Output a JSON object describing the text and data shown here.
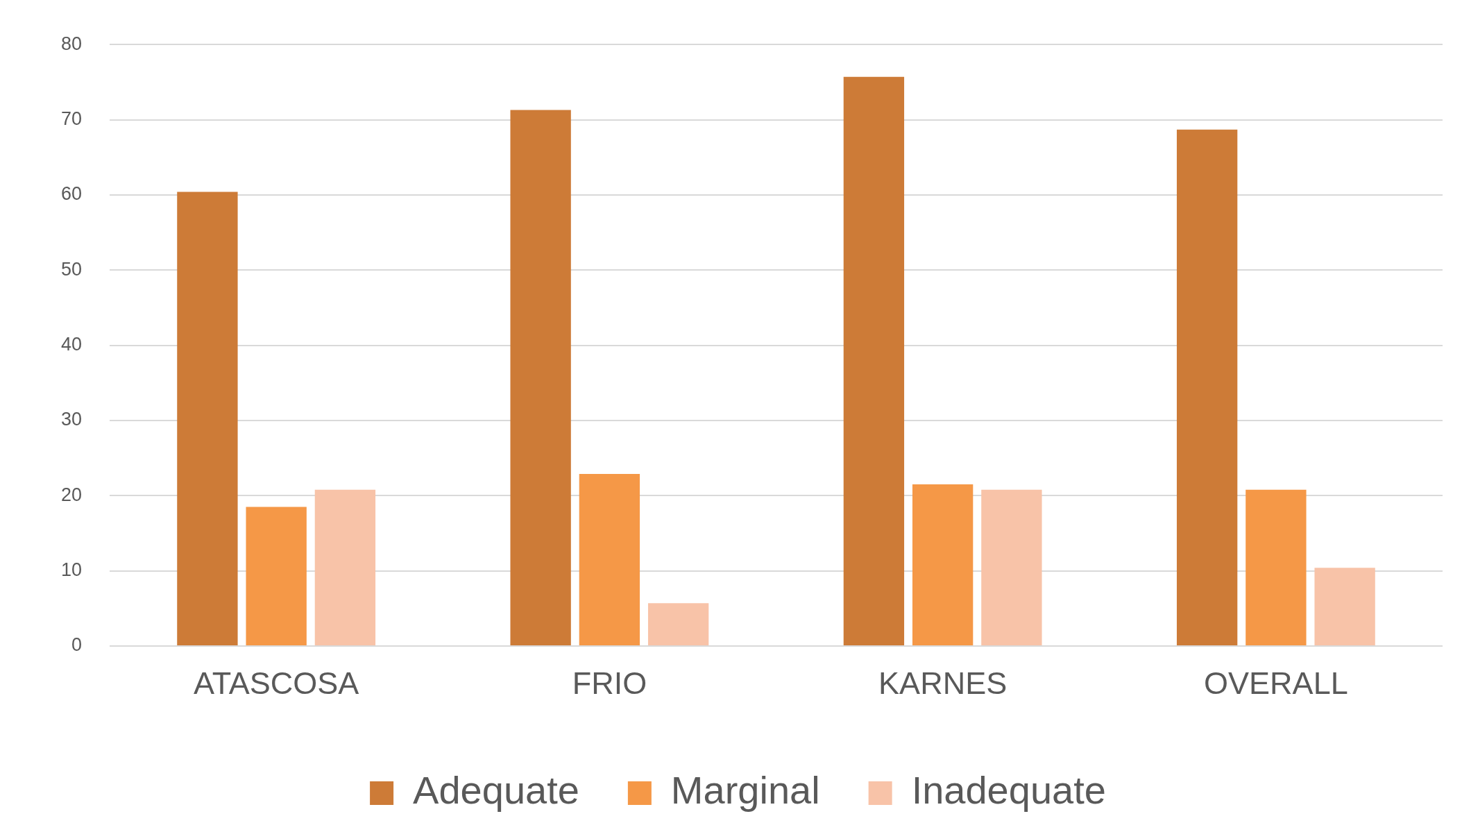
{
  "chart_data": {
    "type": "bar",
    "categories": [
      "ATASCOSA",
      "FRIO",
      "KARNES",
      "OVERALL"
    ],
    "series": [
      {
        "name": "Adequate",
        "color": "#cd7b37",
        "values": [
          60.4,
          71.3,
          75.7,
          68.7
        ]
      },
      {
        "name": "Marginal",
        "color": "#f59847",
        "values": [
          18.5,
          22.9,
          21.5,
          20.8
        ]
      },
      {
        "name": "Inadequate",
        "color": "#f8c3a8",
        "values": [
          20.8,
          5.7,
          20.8,
          10.4
        ]
      }
    ],
    "ylim": [
      0,
      80
    ],
    "yticks": [
      0,
      10,
      20,
      30,
      40,
      50,
      60,
      70,
      80
    ],
    "grid": "y",
    "legend": "bottom"
  }
}
